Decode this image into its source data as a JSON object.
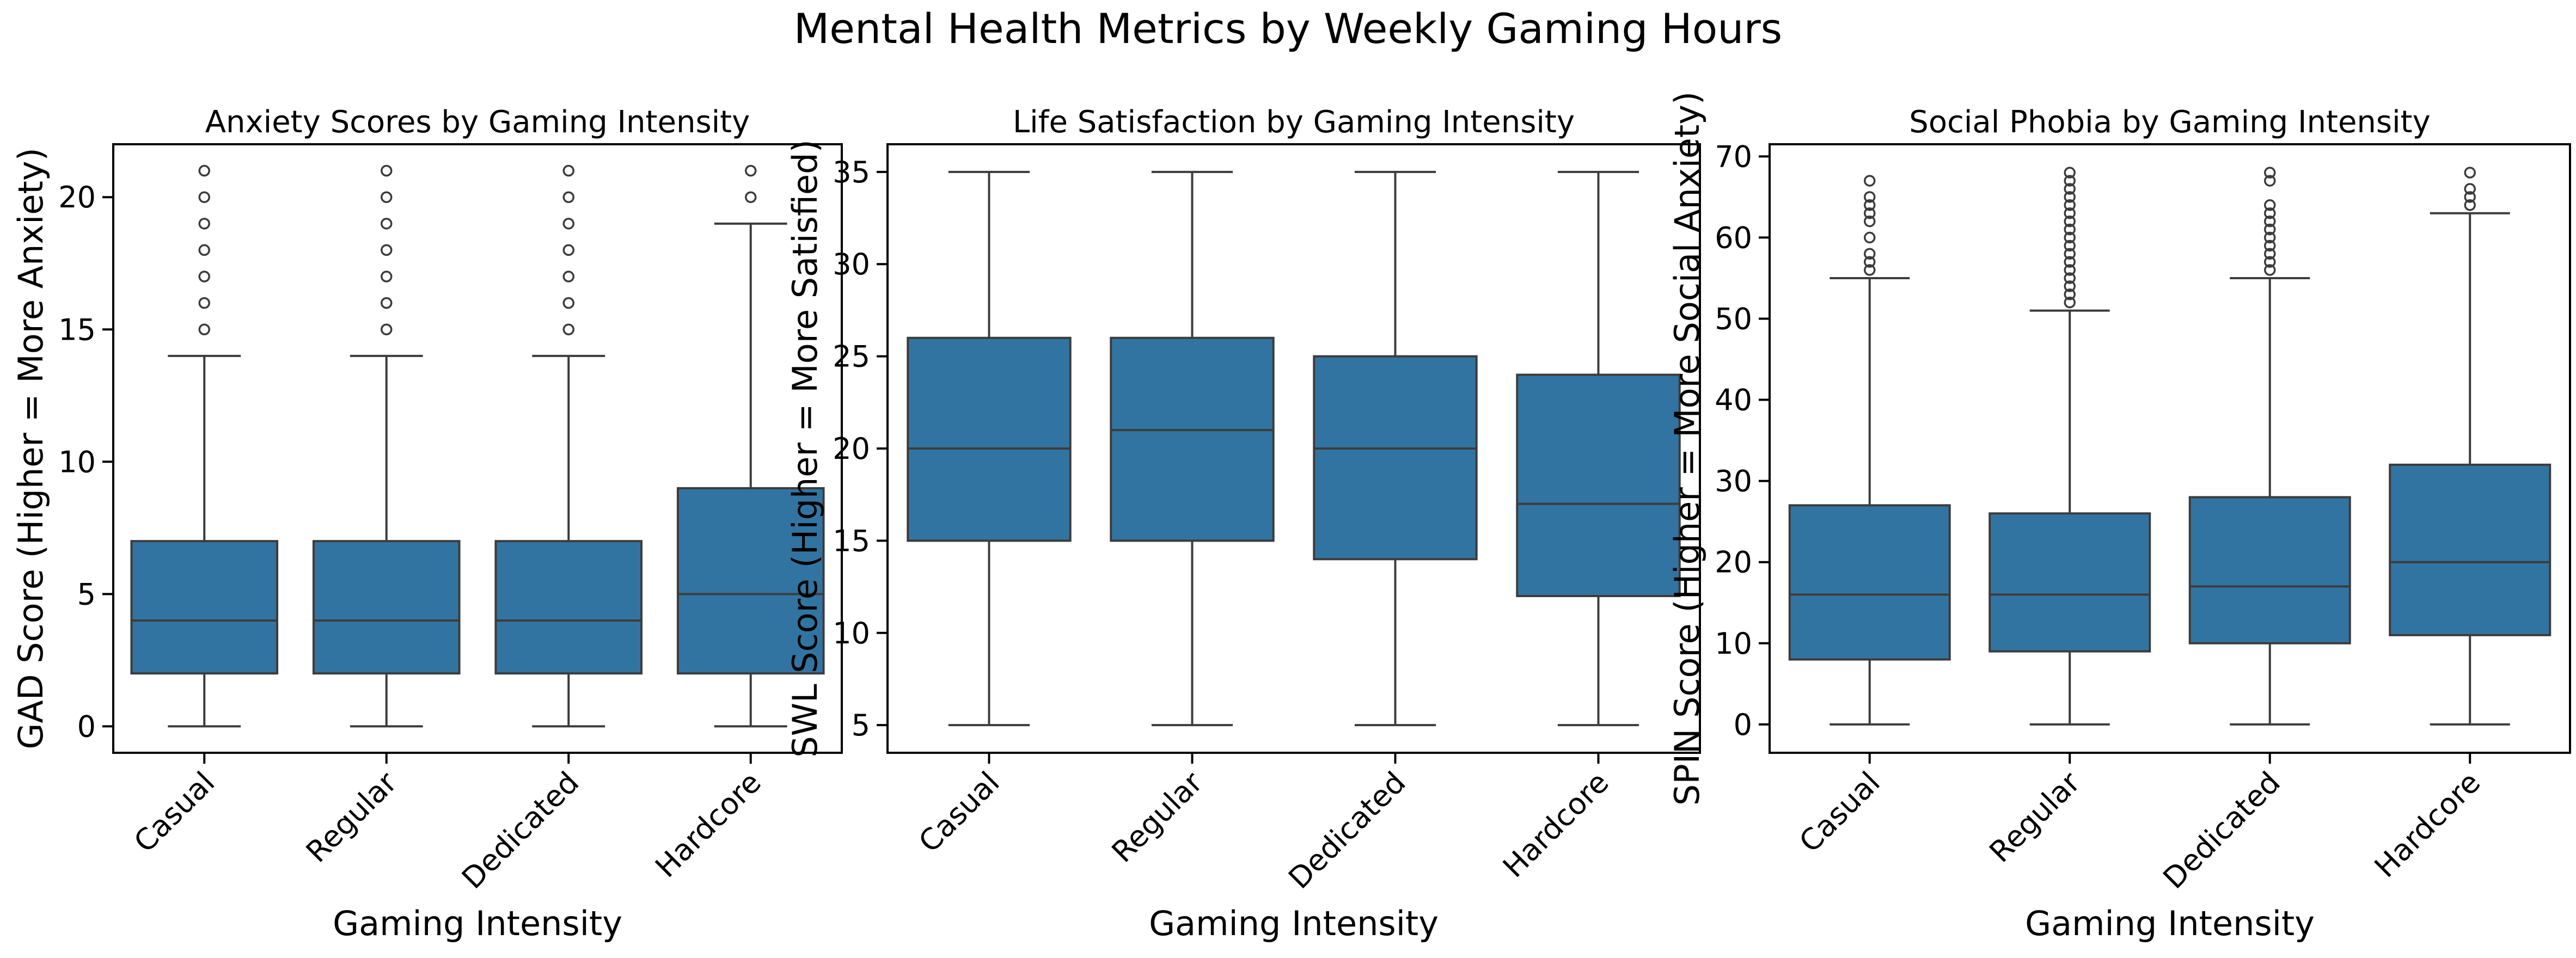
{
  "figure": {
    "title": "Mental Health Metrics by Weekly Gaming Hours"
  },
  "colors": {
    "box_fill": "#3274a1",
    "line": "#3c3c3c",
    "axis": "#000000"
  },
  "chart_data": [
    {
      "type": "box",
      "title": "Anxiety Scores by Gaming Intensity",
      "xlabel": "Gaming Intensity",
      "ylabel": "GAD Score (Higher = More Anxiety)",
      "ylim": [
        -1,
        22
      ],
      "yticks": [
        0,
        5,
        10,
        15,
        20
      ],
      "categories": [
        "Casual",
        "Regular",
        "Dedicated",
        "Hardcore"
      ],
      "boxes": [
        {
          "whisker_low": 0,
          "q1": 2,
          "median": 4,
          "q3": 7,
          "whisker_high": 14,
          "outliers": [
            15,
            16,
            17,
            18,
            19,
            20,
            21
          ]
        },
        {
          "whisker_low": 0,
          "q1": 2,
          "median": 4,
          "q3": 7,
          "whisker_high": 14,
          "outliers": [
            15,
            16,
            17,
            18,
            19,
            20,
            21
          ]
        },
        {
          "whisker_low": 0,
          "q1": 2,
          "median": 4,
          "q3": 7,
          "whisker_high": 14,
          "outliers": [
            15,
            16,
            17,
            18,
            19,
            20,
            21
          ]
        },
        {
          "whisker_low": 0,
          "q1": 2,
          "median": 5,
          "q3": 9,
          "whisker_high": 19,
          "outliers": [
            20,
            21
          ]
        }
      ]
    },
    {
      "type": "box",
      "title": "Life Satisfaction by Gaming Intensity",
      "xlabel": "Gaming Intensity",
      "ylabel": "SWL Score (Higher = More Satisfied)",
      "ylim": [
        3.5,
        36.5
      ],
      "yticks": [
        5,
        10,
        15,
        20,
        25,
        30,
        35
      ],
      "categories": [
        "Casual",
        "Regular",
        "Dedicated",
        "Hardcore"
      ],
      "boxes": [
        {
          "whisker_low": 5,
          "q1": 15,
          "median": 20,
          "q3": 26,
          "whisker_high": 35,
          "outliers": []
        },
        {
          "whisker_low": 5,
          "q1": 15,
          "median": 21,
          "q3": 26,
          "whisker_high": 35,
          "outliers": []
        },
        {
          "whisker_low": 5,
          "q1": 14,
          "median": 20,
          "q3": 25,
          "whisker_high": 35,
          "outliers": []
        },
        {
          "whisker_low": 5,
          "q1": 12,
          "median": 17,
          "q3": 24,
          "whisker_high": 35,
          "outliers": []
        }
      ]
    },
    {
      "type": "box",
      "title": "Social Phobia by Gaming Intensity",
      "xlabel": "Gaming Intensity",
      "ylabel": "SPIN Score (Higher = More Social Anxiety)",
      "ylim": [
        -3.5,
        71.5
      ],
      "yticks": [
        0,
        10,
        20,
        30,
        40,
        50,
        60,
        70
      ],
      "categories": [
        "Casual",
        "Regular",
        "Dedicated",
        "Hardcore"
      ],
      "boxes": [
        {
          "whisker_low": 0,
          "q1": 8,
          "median": 16,
          "q3": 27,
          "whisker_high": 55,
          "outliers": [
            56,
            57,
            58,
            60,
            62,
            63,
            64,
            65,
            67
          ]
        },
        {
          "whisker_low": 0,
          "q1": 9,
          "median": 16,
          "q3": 26,
          "whisker_high": 51,
          "outliers": [
            52,
            53,
            54,
            55,
            56,
            57,
            58,
            59,
            60,
            61,
            62,
            63,
            64,
            65,
            66,
            67,
            68
          ]
        },
        {
          "whisker_low": 0,
          "q1": 10,
          "median": 17,
          "q3": 28,
          "whisker_high": 55,
          "outliers": [
            56,
            57,
            58,
            59,
            60,
            61,
            62,
            63,
            64,
            67,
            68
          ]
        },
        {
          "whisker_low": 0,
          "q1": 11,
          "median": 20,
          "q3": 32,
          "whisker_high": 63,
          "outliers": [
            64,
            65,
            66,
            68
          ]
        }
      ]
    }
  ]
}
